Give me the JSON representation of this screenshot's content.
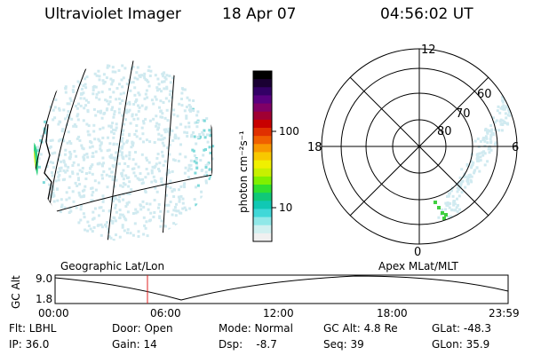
{
  "header": {
    "title": "Ultraviolet Imager",
    "date": "18 Apr 07",
    "time": "04:56:02 UT"
  },
  "colorbar": {
    "unit_label": "photon cm⁻²s⁻¹",
    "ticks": [
      {
        "label": "100",
        "value": 100
      },
      {
        "label": "10",
        "value": 10
      }
    ],
    "colors": [
      "#000000",
      "#1a0033",
      "#330066",
      "#5a0080",
      "#800066",
      "#a00033",
      "#c80000",
      "#e03000",
      "#f06000",
      "#f89800",
      "#f8c800",
      "#f0f000",
      "#c8f000",
      "#80f000",
      "#30e030",
      "#10c878",
      "#10c8b4",
      "#40d8d8",
      "#90e8e8",
      "#d0f0f0",
      "#f0f0f0"
    ]
  },
  "polar": {
    "hour_labels": [
      "12",
      "18",
      "6",
      "0"
    ],
    "lat_labels": [
      "60",
      "70",
      "80"
    ]
  },
  "panel_labels": {
    "left": "Geographic Lat/Lon",
    "right": "Apex MLat/MLT"
  },
  "altitude_plot": {
    "ylabel": "GC Alt",
    "yticks": [
      "9.0",
      "1.8"
    ],
    "xticks": [
      "00:00",
      "06:00",
      "12:00",
      "18:00",
      "23:59"
    ],
    "current_time_marker": "04:56:02"
  },
  "info": {
    "flt": "Flt: LBHL",
    "ip": "IP: 36.0",
    "door": "Door: Open",
    "gain": "Gain: 14",
    "mode": "Mode: Normal",
    "dsp": "Dsp:    -8.7",
    "gcalt": "GC Alt: 4.8 Re",
    "seq": "Seq: 39",
    "glat": "GLat: -48.3",
    "glon": "GLon: 35.9"
  },
  "colors": {
    "marker": "#e02020",
    "faint_aurora": "#d0eaf0",
    "cyan_aurora": "#7fdada",
    "bright_aurora": "#e8f020"
  }
}
